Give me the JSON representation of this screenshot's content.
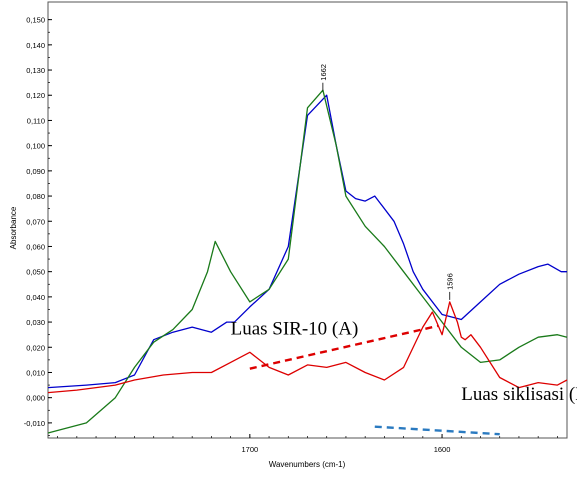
{
  "chart_data": {
    "type": "line",
    "title": "",
    "xlabel": "Wavenumbers (cm-1)",
    "ylabel": "Absorbance",
    "xlim": [
      1805,
      1535
    ],
    "ylim": [
      -0.016,
      0.157
    ],
    "x_ticks": [
      1700,
      1600
    ],
    "x_tick_labels": [
      "1700",
      "1600"
    ],
    "y_ticks": [
      -0.01,
      0.0,
      0.01,
      0.02,
      0.03,
      0.04,
      0.05,
      0.06,
      0.07,
      0.08,
      0.09,
      0.1,
      0.11,
      0.12,
      0.13,
      0.14,
      0.15
    ],
    "y_tick_labels": [
      "-0,010",
      "0,000",
      "0,010",
      "0,020",
      "0,030",
      "0,040",
      "0,050",
      "0,060",
      "0,070",
      "0,080",
      "0,090",
      "0,100",
      "0,110",
      "0,120",
      "0,130",
      "0,140",
      "0,150"
    ],
    "grid": false,
    "series": [
      {
        "color": "#0000cc",
        "x": [
          1805,
          1785,
          1770,
          1760,
          1750,
          1740,
          1730,
          1720,
          1712,
          1708,
          1700,
          1690,
          1680,
          1670,
          1660,
          1655,
          1650,
          1645,
          1640,
          1635,
          1625,
          1620,
          1615,
          1610,
          1600,
          1590,
          1580,
          1570,
          1560,
          1550,
          1545,
          1538,
          1535
        ],
        "y": [
          0.004,
          0.005,
          0.006,
          0.009,
          0.023,
          0.026,
          0.028,
          0.026,
          0.03,
          0.03,
          0.036,
          0.043,
          0.06,
          0.112,
          0.12,
          0.1,
          0.082,
          0.079,
          0.078,
          0.08,
          0.07,
          0.061,
          0.05,
          0.043,
          0.033,
          0.031,
          0.038,
          0.045,
          0.049,
          0.052,
          0.053,
          0.05,
          0.05
        ]
      },
      {
        "color": "#1a7a1a",
        "x": [
          1805,
          1785,
          1770,
          1760,
          1750,
          1740,
          1730,
          1722,
          1718,
          1710,
          1700,
          1690,
          1680,
          1670,
          1662,
          1655,
          1650,
          1640,
          1630,
          1620,
          1610,
          1600,
          1590,
          1580,
          1570,
          1560,
          1550,
          1540,
          1535
        ],
        "y": [
          -0.014,
          -0.01,
          0.0,
          0.012,
          0.022,
          0.027,
          0.035,
          0.05,
          0.062,
          0.05,
          0.038,
          0.043,
          0.055,
          0.115,
          0.122,
          0.1,
          0.08,
          0.068,
          0.06,
          0.05,
          0.04,
          0.03,
          0.02,
          0.014,
          0.015,
          0.02,
          0.024,
          0.025,
          0.024
        ]
      },
      {
        "color": "#dd0000",
        "x": [
          1805,
          1790,
          1770,
          1760,
          1745,
          1730,
          1720,
          1710,
          1700,
          1690,
          1680,
          1670,
          1660,
          1650,
          1640,
          1630,
          1620,
          1610,
          1605,
          1600,
          1596,
          1592,
          1590,
          1588,
          1585,
          1580,
          1570,
          1560,
          1550,
          1540,
          1535
        ],
        "y": [
          0.002,
          0.003,
          0.005,
          0.007,
          0.009,
          0.01,
          0.01,
          0.014,
          0.018,
          0.012,
          0.009,
          0.013,
          0.012,
          0.014,
          0.01,
          0.007,
          0.012,
          0.028,
          0.034,
          0.025,
          0.038,
          0.03,
          0.024,
          0.023,
          0.025,
          0.02,
          0.008,
          0.004,
          0.006,
          0.005,
          0.007
        ]
      }
    ],
    "annotations": [
      {
        "text": "1662",
        "x": 1662,
        "y": 0.121,
        "kind": "peak-label"
      },
      {
        "text": "1596",
        "x": 1596,
        "y": 0.038,
        "kind": "peak-label"
      },
      {
        "text": "Luas SIR-10 (A)",
        "x": 1710,
        "y": 0.025,
        "kind": "area-label"
      },
      {
        "text": "Luas siklisasi (B)",
        "x": 1590,
        "y": -0.001,
        "kind": "area-label"
      }
    ],
    "dashed_lines": [
      {
        "color": "#dd0000",
        "x": [
          1700,
          1602
        ],
        "y": [
          0.0115,
          0.0285
        ]
      },
      {
        "color": "#2a7ac0",
        "x": [
          1635,
          1570
        ],
        "y": [
          -0.0115,
          -0.0145
        ]
      }
    ]
  }
}
